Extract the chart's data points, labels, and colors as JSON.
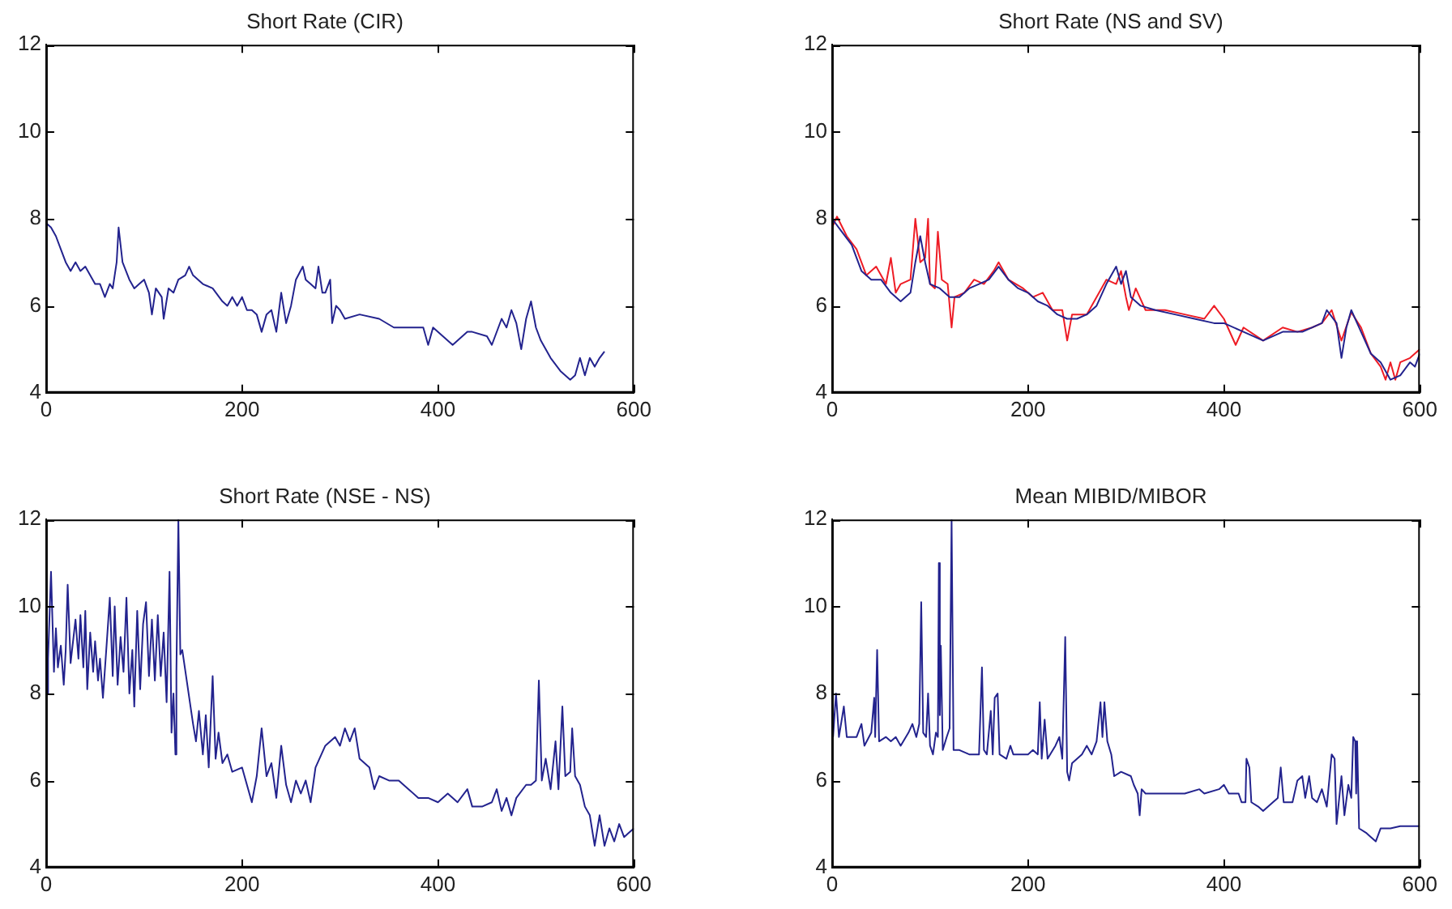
{
  "chart_data": [
    {
      "type": "line",
      "title": "Short Rate (CIR)",
      "marker": "none",
      "xlim": [
        0,
        600
      ],
      "xticks": [
        0,
        200,
        400,
        600
      ],
      "ylim": [
        4,
        12
      ],
      "yticks": [
        4,
        6,
        8,
        10,
        12
      ],
      "series": [
        {
          "color": "#23238e",
          "x": [
            0,
            5,
            10,
            15,
            20,
            25,
            30,
            35,
            40,
            45,
            50,
            55,
            60,
            65,
            68,
            72,
            74,
            78,
            85,
            90,
            95,
            100,
            105,
            108,
            112,
            118,
            120,
            125,
            130,
            135,
            142,
            146,
            150,
            160,
            170,
            180,
            185,
            190,
            195,
            200,
            205,
            210,
            215,
            220,
            225,
            230,
            235,
            240,
            245,
            250,
            255,
            262,
            265,
            270,
            275,
            278,
            282,
            285,
            290,
            292,
            296,
            300,
            305,
            320,
            340,
            355,
            370,
            385,
            390,
            395,
            405,
            415,
            430,
            435,
            450,
            455,
            465,
            470,
            475,
            480,
            485,
            490,
            495,
            500,
            505,
            515,
            525,
            535,
            540,
            545,
            550,
            555,
            560,
            565,
            570
          ],
          "values": [
            7.9,
            7.8,
            7.6,
            7.3,
            7.0,
            6.8,
            7.0,
            6.8,
            6.9,
            6.7,
            6.5,
            6.5,
            6.2,
            6.5,
            6.4,
            7.0,
            7.8,
            7.0,
            6.6,
            6.4,
            6.5,
            6.6,
            6.3,
            5.8,
            6.4,
            6.2,
            5.7,
            6.4,
            6.3,
            6.6,
            6.7,
            6.9,
            6.7,
            6.5,
            6.4,
            6.1,
            6.0,
            6.2,
            6.0,
            6.2,
            5.9,
            5.9,
            5.8,
            5.4,
            5.8,
            5.9,
            5.4,
            6.3,
            5.6,
            6.0,
            6.6,
            6.9,
            6.6,
            6.5,
            6.4,
            6.9,
            6.3,
            6.3,
            6.6,
            5.6,
            6.0,
            5.9,
            5.7,
            5.8,
            5.7,
            5.5,
            5.5,
            5.5,
            5.1,
            5.5,
            5.3,
            5.1,
            5.4,
            5.4,
            5.3,
            5.1,
            5.7,
            5.5,
            5.9,
            5.6,
            5.0,
            5.7,
            6.1,
            5.5,
            5.2,
            4.8,
            4.5,
            4.3,
            4.4,
            4.8,
            4.4,
            4.8,
            4.6,
            4.8,
            4.95
          ]
        }
      ]
    },
    {
      "type": "line",
      "title": "Short Rate (NS and SV)",
      "marker": "none",
      "xlim": [
        0,
        600
      ],
      "xticks": [
        0,
        200,
        400,
        600
      ],
      "ylim": [
        4,
        12
      ],
      "yticks": [
        4,
        6,
        8,
        10,
        12
      ],
      "series": [
        {
          "color": "#23238e",
          "x": [
            0,
            10,
            20,
            30,
            40,
            50,
            60,
            70,
            80,
            85,
            90,
            95,
            100,
            110,
            120,
            130,
            140,
            150,
            160,
            170,
            180,
            190,
            200,
            210,
            220,
            230,
            240,
            250,
            260,
            270,
            280,
            290,
            295,
            300,
            305,
            315,
            330,
            350,
            370,
            390,
            400,
            420,
            440,
            460,
            480,
            500,
            505,
            515,
            520,
            525,
            530,
            540,
            550,
            560,
            570,
            580,
            590,
            595,
            600
          ],
          "values": [
            8.0,
            7.7,
            7.4,
            6.8,
            6.6,
            6.6,
            6.3,
            6.1,
            6.3,
            7.0,
            7.6,
            7.0,
            6.5,
            6.4,
            6.2,
            6.2,
            6.4,
            6.5,
            6.6,
            6.9,
            6.6,
            6.4,
            6.3,
            6.1,
            6.0,
            5.8,
            5.7,
            5.7,
            5.8,
            6.0,
            6.5,
            6.9,
            6.5,
            6.8,
            6.2,
            6.0,
            5.9,
            5.8,
            5.7,
            5.6,
            5.6,
            5.4,
            5.2,
            5.4,
            5.4,
            5.6,
            5.9,
            5.6,
            4.8,
            5.5,
            5.9,
            5.4,
            4.9,
            4.7,
            4.3,
            4.4,
            4.7,
            4.6,
            4.9
          ]
        },
        {
          "color": "#ee1c25",
          "x": [
            0,
            5,
            15,
            25,
            35,
            45,
            55,
            60,
            65,
            70,
            80,
            85,
            90,
            95,
            98,
            100,
            105,
            108,
            112,
            118,
            122,
            125,
            135,
            145,
            155,
            165,
            170,
            180,
            195,
            205,
            215,
            225,
            235,
            240,
            245,
            260,
            270,
            280,
            290,
            295,
            300,
            303,
            310,
            320,
            340,
            360,
            380,
            390,
            400,
            412,
            420,
            440,
            460,
            475,
            490,
            500,
            510,
            520,
            530,
            540,
            550,
            560,
            565,
            570,
            575,
            580,
            590,
            600
          ],
          "values": [
            7.8,
            8.05,
            7.6,
            7.3,
            6.7,
            6.9,
            6.5,
            7.1,
            6.3,
            6.5,
            6.6,
            8.0,
            7.0,
            7.1,
            8.0,
            6.5,
            6.4,
            7.7,
            6.6,
            6.5,
            5.5,
            6.2,
            6.3,
            6.6,
            6.5,
            6.8,
            7.0,
            6.6,
            6.4,
            6.2,
            6.3,
            5.9,
            5.9,
            5.2,
            5.8,
            5.8,
            6.2,
            6.6,
            6.5,
            6.8,
            6.2,
            5.9,
            6.4,
            5.9,
            5.9,
            5.8,
            5.7,
            6.0,
            5.7,
            5.1,
            5.5,
            5.2,
            5.5,
            5.4,
            5.5,
            5.6,
            5.9,
            5.2,
            5.85,
            5.5,
            4.9,
            4.6,
            4.3,
            4.7,
            4.3,
            4.7,
            4.8,
            5.0
          ]
        }
      ]
    },
    {
      "type": "line",
      "title": "Short Rate (NSE - NS)",
      "marker": "none",
      "xlim": [
        0,
        600
      ],
      "xticks": [
        0,
        200,
        400,
        600
      ],
      "ylim": [
        4,
        12
      ],
      "yticks": [
        4,
        6,
        8,
        10,
        12
      ],
      "series": [
        {
          "color": "#23238e",
          "x": [
            1,
            2,
            5,
            8,
            10,
            12,
            15,
            18,
            20,
            22,
            25,
            30,
            33,
            35,
            38,
            40,
            42,
            45,
            48,
            50,
            53,
            55,
            58,
            62,
            65,
            68,
            70,
            73,
            76,
            79,
            82,
            85,
            88,
            90,
            93,
            96,
            99,
            102,
            105,
            108,
            111,
            114,
            117,
            120,
            123,
            126,
            128,
            130,
            132,
            133,
            135,
            137,
            139,
            150,
            153,
            156,
            160,
            163,
            166,
            170,
            173,
            176,
            180,
            185,
            190,
            200,
            205,
            210,
            215,
            220,
            225,
            230,
            235,
            240,
            245,
            250,
            255,
            260,
            265,
            270,
            275,
            285,
            295,
            300,
            305,
            310,
            315,
            320,
            330,
            335,
            340,
            350,
            360,
            370,
            380,
            390,
            400,
            410,
            420,
            430,
            435,
            445,
            455,
            460,
            465,
            470,
            475,
            480,
            490,
            495,
            500,
            503,
            506,
            510,
            515,
            520,
            523,
            527,
            530,
            535,
            537,
            540,
            545,
            550,
            555,
            560,
            565,
            570,
            575,
            580,
            585,
            590,
            595,
            600
          ],
          "values": [
            8.0,
            8.8,
            10.8,
            8.5,
            9.5,
            8.6,
            9.1,
            8.2,
            9.0,
            10.5,
            8.7,
            9.7,
            8.8,
            9.8,
            8.6,
            9.9,
            8.1,
            9.4,
            8.5,
            9.2,
            8.3,
            8.8,
            7.9,
            9.2,
            10.2,
            8.4,
            10.0,
            8.2,
            9.3,
            8.5,
            10.2,
            8.0,
            9.0,
            7.7,
            9.9,
            8.1,
            9.6,
            10.1,
            8.4,
            9.7,
            8.3,
            9.8,
            8.4,
            9.4,
            7.8,
            10.8,
            7.1,
            8.0,
            6.6,
            8.5,
            12.0,
            8.9,
            9.0,
            7.3,
            6.9,
            7.6,
            6.6,
            7.5,
            6.3,
            8.4,
            6.5,
            7.1,
            6.4,
            6.6,
            6.2,
            6.3,
            5.9,
            5.5,
            6.1,
            7.2,
            6.1,
            6.4,
            5.6,
            6.8,
            5.9,
            5.5,
            6.0,
            5.7,
            6.0,
            5.5,
            6.3,
            6.8,
            7.0,
            6.8,
            7.2,
            6.9,
            7.2,
            6.5,
            6.3,
            5.8,
            6.1,
            6.0,
            6.0,
            5.8,
            5.6,
            5.6,
            5.5,
            5.7,
            5.5,
            5.8,
            5.4,
            5.4,
            5.5,
            5.8,
            5.3,
            5.6,
            5.2,
            5.6,
            5.9,
            5.9,
            6.0,
            8.3,
            6.0,
            6.5,
            5.8,
            6.9,
            5.8,
            7.7,
            6.1,
            6.2,
            7.2,
            6.1,
            5.9,
            5.4,
            5.2,
            4.5,
            5.2,
            4.5,
            4.9,
            4.6,
            5.0,
            4.7,
            4.8,
            4.9
          ]
        }
      ]
    },
    {
      "type": "line",
      "title": "Mean MIBID/MIBOR",
      "marker": "none",
      "xlim": [
        0,
        600
      ],
      "xticks": [
        0,
        200,
        400,
        600
      ],
      "ylim": [
        4,
        12
      ],
      "yticks": [
        4,
        6,
        8,
        10,
        12
      ],
      "series": [
        {
          "color": "#23238e",
          "x": [
            1,
            4,
            7,
            12,
            15,
            25,
            30,
            33,
            40,
            43,
            44,
            46,
            48,
            55,
            60,
            65,
            70,
            78,
            82,
            86,
            89,
            91,
            93,
            96,
            98,
            100,
            103,
            106,
            108,
            109,
            110,
            111,
            113,
            117,
            120,
            122,
            124,
            130,
            140,
            145,
            150,
            153,
            155,
            158,
            162,
            164,
            166,
            169,
            171,
            178,
            182,
            185,
            200,
            205,
            210,
            212,
            214,
            217,
            220,
            228,
            232,
            235,
            238,
            240,
            242,
            245,
            255,
            260,
            265,
            270,
            274,
            276,
            278,
            281,
            285,
            288,
            295,
            305,
            308,
            312,
            314,
            316,
            320,
            360,
            375,
            380,
            395,
            400,
            405,
            415,
            418,
            422,
            423,
            426,
            428,
            435,
            440,
            450,
            455,
            458,
            461,
            470,
            475,
            480,
            483,
            487,
            490,
            495,
            500,
            505,
            510,
            513,
            515,
            520,
            523,
            527,
            530,
            532,
            534,
            535,
            536,
            538,
            545,
            550,
            555,
            560,
            570,
            580,
            590,
            600
          ],
          "values": [
            7.0,
            8.0,
            7.0,
            7.7,
            7.0,
            7.0,
            7.3,
            6.8,
            7.1,
            7.9,
            7.0,
            9.0,
            6.9,
            7.0,
            6.9,
            7.0,
            6.8,
            7.1,
            7.3,
            7.0,
            7.3,
            10.1,
            7.1,
            7.0,
            8.0,
            6.8,
            6.6,
            7.1,
            7.0,
            11.0,
            7.5,
            9.1,
            6.7,
            7.0,
            7.2,
            12.0,
            6.7,
            6.7,
            6.6,
            6.6,
            6.6,
            8.6,
            6.7,
            6.6,
            7.6,
            6.6,
            7.9,
            8.0,
            6.6,
            6.5,
            6.8,
            6.6,
            6.6,
            6.7,
            6.6,
            7.8,
            6.5,
            7.4,
            6.5,
            6.8,
            7.0,
            6.5,
            9.3,
            6.2,
            6.0,
            6.4,
            6.6,
            6.8,
            6.6,
            6.9,
            7.8,
            7.0,
            7.8,
            6.9,
            6.6,
            6.1,
            6.2,
            6.1,
            5.9,
            5.7,
            5.2,
            5.8,
            5.7,
            5.7,
            5.8,
            5.7,
            5.8,
            5.9,
            5.7,
            5.7,
            5.5,
            5.5,
            6.5,
            6.3,
            5.5,
            5.4,
            5.3,
            5.5,
            5.6,
            6.3,
            5.5,
            5.5,
            6.0,
            6.1,
            5.6,
            6.1,
            5.6,
            5.5,
            5.8,
            5.4,
            6.6,
            6.5,
            5.0,
            6.1,
            5.2,
            5.9,
            5.6,
            7.0,
            6.9,
            5.7,
            6.9,
            4.9,
            4.8,
            4.7,
            4.6,
            4.9,
            4.9,
            4.95,
            4.95,
            4.95
          ]
        }
      ]
    }
  ]
}
